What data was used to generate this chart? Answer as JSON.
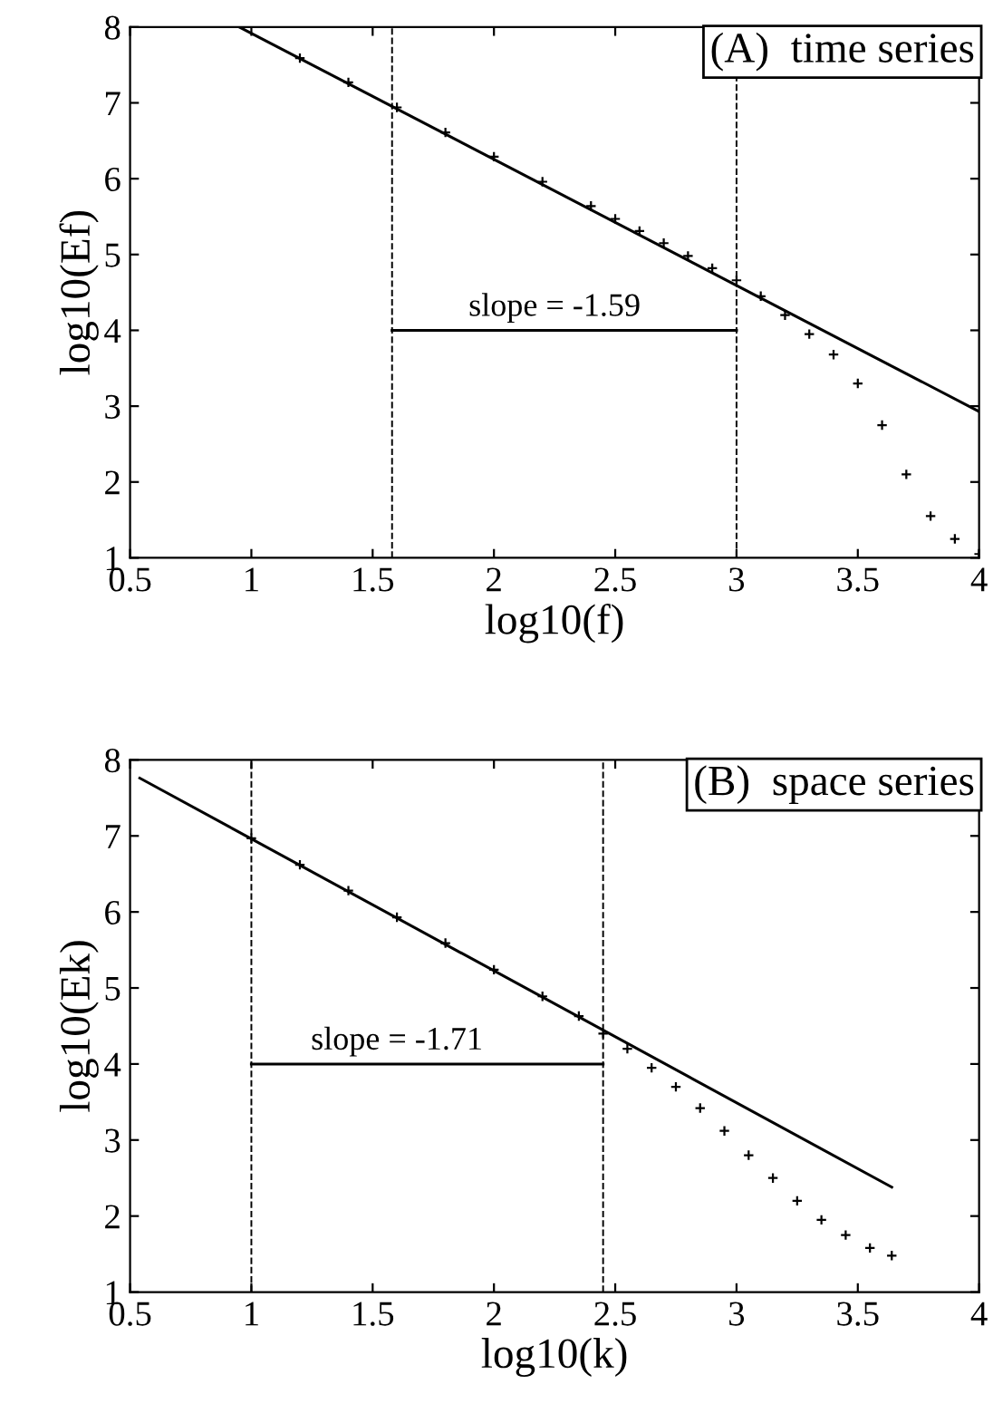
{
  "chart_data": [
    {
      "type": "line",
      "title": "(A)  time series",
      "xlabel": "log10(f)",
      "ylabel": "log10(Ef)",
      "xlim": [
        0.5,
        4
      ],
      "ylim": [
        1,
        8
      ],
      "xticks": [
        0.5,
        1,
        1.5,
        2,
        2.5,
        3,
        3.5,
        4
      ],
      "yticks": [
        1,
        2,
        3,
        4,
        5,
        6,
        7,
        8
      ],
      "grid": false,
      "series": [
        {
          "type": "line",
          "color": "#000000",
          "line_style": "solid",
          "x": [
            0.95,
            4.0
          ],
          "values": [
            8.0,
            2.93
          ]
        },
        {
          "type": "scatter",
          "color": "#000000",
          "marker": "cross",
          "x": [
            1.2,
            1.4,
            1.6,
            1.8,
            2.0,
            2.2,
            2.4,
            2.5,
            2.6,
            2.7,
            2.8,
            2.9,
            3.0,
            3.1,
            3.2,
            3.3,
            3.4,
            3.5,
            3.6,
            3.7,
            3.8,
            3.9,
            4.0
          ],
          "values": [
            7.59,
            7.27,
            6.94,
            6.61,
            6.29,
            5.96,
            5.64,
            5.47,
            5.31,
            5.15,
            4.98,
            4.82,
            4.66,
            4.45,
            4.2,
            3.95,
            3.68,
            3.3,
            2.75,
            2.1,
            1.55,
            1.25,
            1.05
          ]
        },
        {
          "type": "line",
          "color": "#000000",
          "line_style": "solid",
          "x": [
            1.58,
            3.0
          ],
          "values": [
            4.0,
            4.0
          ]
        }
      ],
      "ref_lines": [
        {
          "axis": "x",
          "value": 1.58,
          "line_style": "dashed"
        },
        {
          "axis": "x",
          "value": 3.0,
          "line_style": "dashed"
        }
      ],
      "annotations": [
        {
          "text": "slope = -1.59",
          "x": 2.25,
          "y": 4.1
        }
      ]
    },
    {
      "type": "line",
      "title": "(B)  space series",
      "xlabel": "log10(k)",
      "ylabel": "log10(Ek)",
      "xlim": [
        0.5,
        4
      ],
      "ylim": [
        1,
        8
      ],
      "xticks": [
        0.5,
        1,
        1.5,
        2,
        2.5,
        3,
        3.5,
        4
      ],
      "yticks": [
        1,
        2,
        3,
        4,
        5,
        6,
        7,
        8
      ],
      "grid": false,
      "series": [
        {
          "type": "line",
          "color": "#000000",
          "line_style": "solid",
          "x": [
            0.54,
            3.64
          ],
          "values": [
            7.76,
            2.38
          ]
        },
        {
          "type": "scatter",
          "color": "#000000",
          "marker": "cross",
          "x": [
            1.0,
            1.2,
            1.4,
            1.6,
            1.8,
            2.0,
            2.2,
            2.35,
            2.45,
            2.55,
            2.65,
            2.75,
            2.85,
            2.95,
            3.05,
            3.15,
            3.25,
            3.35,
            3.45,
            3.55,
            3.64
          ],
          "values": [
            6.97,
            6.62,
            6.28,
            5.93,
            5.59,
            5.24,
            4.89,
            4.63,
            4.4,
            4.2,
            3.95,
            3.7,
            3.42,
            3.12,
            2.8,
            2.5,
            2.2,
            1.95,
            1.75,
            1.58,
            1.48
          ]
        },
        {
          "type": "line",
          "color": "#000000",
          "line_style": "solid",
          "x": [
            1.0,
            2.45
          ],
          "values": [
            4.0,
            4.0
          ]
        }
      ],
      "ref_lines": [
        {
          "axis": "x",
          "value": 1.0,
          "line_style": "dashed"
        },
        {
          "axis": "x",
          "value": 2.45,
          "line_style": "dashed"
        }
      ],
      "annotations": [
        {
          "text": "slope = -1.71",
          "x": 1.6,
          "y": 4.1
        }
      ]
    }
  ]
}
